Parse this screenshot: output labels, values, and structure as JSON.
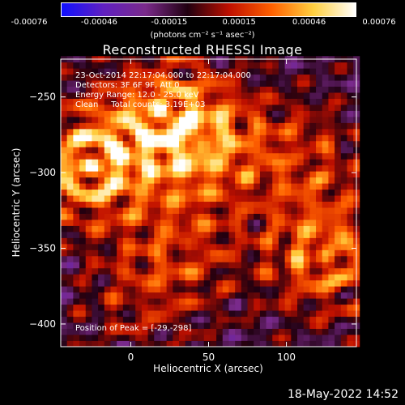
{
  "colorbar": {
    "labels": [
      "-0.00076",
      "-0.00046",
      "-0.00015",
      "0.00015",
      "0.00046",
      "0.00076"
    ],
    "unit": "(photons cm⁻² s⁻¹ asec⁻²)",
    "colors": [
      "#1010ff",
      "#6020c0",
      "#7a2a8a",
      "#200010",
      "#c01000",
      "#ff6000",
      "#ffd040",
      "#ffffff"
    ]
  },
  "chart_data": {
    "type": "heatmap",
    "title": "Reconstructed RHESSI Image",
    "xlabel": "Heliocentric X (arcsec)",
    "ylabel": "Heliocentric Y (arcsec)",
    "xlim": [
      -45,
      145
    ],
    "ylim": [
      -415,
      -225
    ],
    "xticks": [
      0,
      50,
      100
    ],
    "yticks": [
      -250,
      -300,
      -350,
      -400
    ],
    "annotations": [
      "23-Oct-2014 22:17:04.000 to 22:17:04.000",
      "Detectors: 3F 6F 9F, Att 0",
      "Energy Range: 12.0 - 25.0 keV",
      "Clean     Total counts: 3.19E+03"
    ],
    "peak_label": "Position of Peak = [-29,-298]",
    "peak": [
      -29,
      -298
    ],
    "zrange": [
      -0.00076,
      0.00076
    ],
    "sources": [
      {
        "x": -25,
        "y": -295,
        "strength": 1.0
      },
      {
        "x": 45,
        "y": -280,
        "strength": 0.8
      },
      {
        "x": 20,
        "y": -260,
        "strength": 0.6
      },
      {
        "x": 125,
        "y": -355,
        "strength": 0.8
      },
      {
        "x": 110,
        "y": -290,
        "strength": 0.5
      },
      {
        "x": 35,
        "y": -350,
        "strength": 0.45
      },
      {
        "x": 5,
        "y": -385,
        "strength": 0.35
      }
    ]
  },
  "footer": {
    "date": "18-May-2022 14:52"
  }
}
